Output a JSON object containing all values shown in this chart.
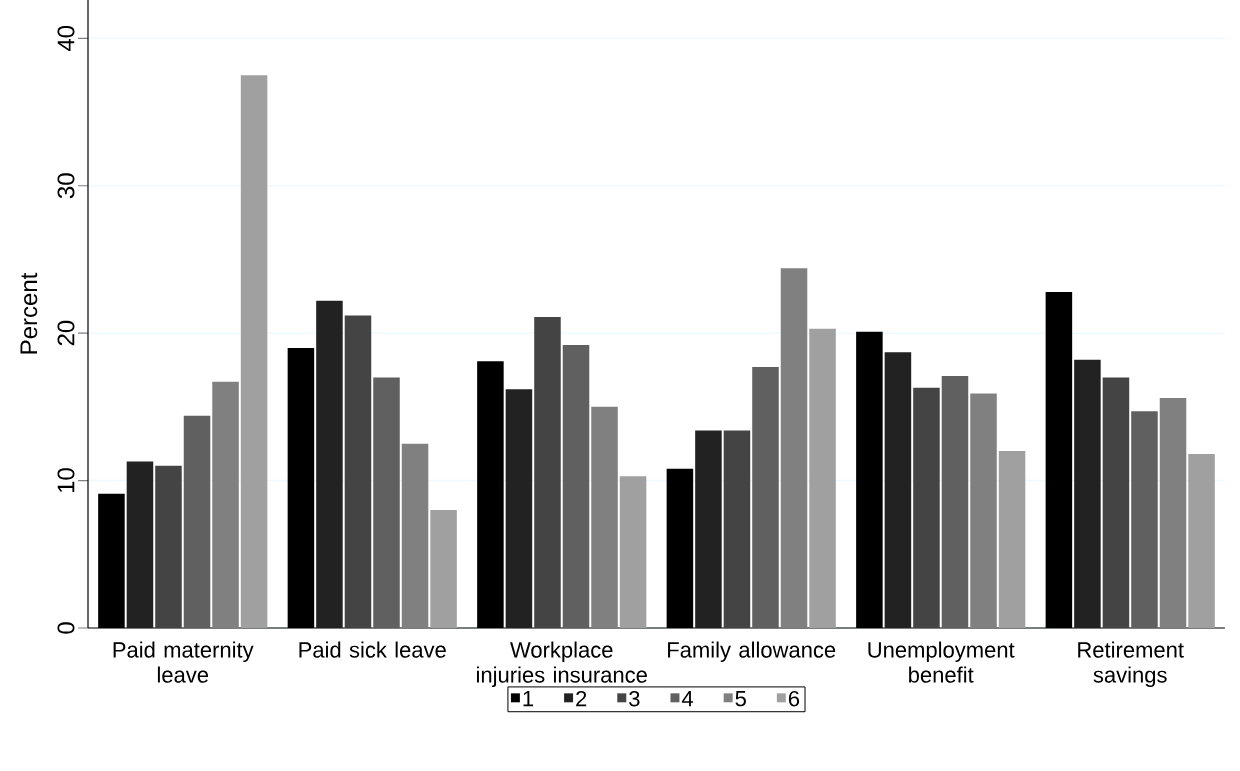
{
  "chart_data": {
    "type": "bar",
    "ylabel": "Percent",
    "categories": [
      "Paid maternity leave",
      "Paid sick leave",
      "Workplace injuries insurance",
      "Family allowance",
      "Unemployment benefit",
      "Retirement savings"
    ],
    "series": [
      {
        "name": "1",
        "color": "#000000",
        "values": [
          9.1,
          19.0,
          18.1,
          10.8,
          20.1,
          22.8
        ]
      },
      {
        "name": "2",
        "color": "#222222",
        "values": [
          11.3,
          22.2,
          16.2,
          13.4,
          18.7,
          18.2
        ]
      },
      {
        "name": "3",
        "color": "#444444",
        "values": [
          11.0,
          21.2,
          21.1,
          13.4,
          16.3,
          17.0
        ]
      },
      {
        "name": "4",
        "color": "#606060",
        "values": [
          14.4,
          17.0,
          19.2,
          17.7,
          17.1,
          14.7
        ]
      },
      {
        "name": "5",
        "color": "#808080",
        "values": [
          16.7,
          12.5,
          15.0,
          24.4,
          15.9,
          15.6
        ]
      },
      {
        "name": "6",
        "color": "#a0a0a0",
        "values": [
          37.5,
          8.0,
          10.3,
          20.3,
          12.0,
          11.8
        ]
      }
    ],
    "ylim": [
      0,
      42.6
    ],
    "yticks": [
      0,
      10,
      20,
      30,
      40
    ],
    "grid": "y",
    "legend": "bottom"
  }
}
